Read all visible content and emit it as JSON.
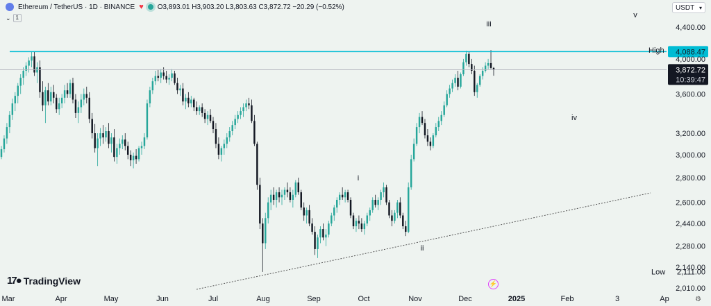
{
  "header": {
    "symbol": "Ethereum / TetherUS · 1D · BINANCE",
    "open": "O3,893.01",
    "high": "H3,903.20",
    "low": "L3,803.63",
    "close": "C3,872.72",
    "change": "−20.29 (−0.52%)",
    "indicator_count": "1"
  },
  "currency": {
    "label": "USDT"
  },
  "watermark": "TradingView",
  "chart_data": {
    "type": "candlestick",
    "title": "Ethereum / TetherUS · 1D · BINANCE",
    "x_tick_labels": [
      "Mar",
      "Apr",
      "May",
      "Jun",
      "Jul",
      "Aug",
      "Sep",
      "Oct",
      "Nov",
      "Dec",
      "2025",
      "Feb",
      "3",
      "Ap"
    ],
    "y_tick_labels": [
      "4,400.00",
      "4,000.00",
      "3,600.00",
      "3,200.00",
      "3,000.00",
      "2,800.00",
      "2,600.00",
      "2,440.00",
      "2,280.00",
      "2,140.00",
      "2,010.00"
    ],
    "scale": "log",
    "ylim": [
      1990,
      4560
    ],
    "candles": [
      [
        2980,
        3080,
        2960,
        3050
      ],
      [
        3050,
        3180,
        3020,
        3150
      ],
      [
        3150,
        3300,
        3100,
        3260
      ],
      [
        3260,
        3420,
        3200,
        3380
      ],
      [
        3380,
        3550,
        3330,
        3500
      ],
      [
        3500,
        3620,
        3420,
        3580
      ],
      [
        3580,
        3720,
        3500,
        3690
      ],
      [
        3690,
        3820,
        3600,
        3780
      ],
      [
        3780,
        3900,
        3700,
        3860
      ],
      [
        3860,
        3960,
        3800,
        3920
      ],
      [
        3920,
        4020,
        3840,
        3980
      ],
      [
        3980,
        4090,
        3900,
        4030
      ],
      [
        4030,
        4090,
        3800,
        3840
      ],
      [
        3840,
        3960,
        3720,
        3900
      ],
      [
        3900,
        3980,
        3560,
        3620
      ],
      [
        3620,
        3740,
        3420,
        3480
      ],
      [
        3480,
        3680,
        3300,
        3640
      ],
      [
        3640,
        3720,
        3480,
        3520
      ],
      [
        3520,
        3680,
        3480,
        3620
      ],
      [
        3620,
        3700,
        3500,
        3560
      ],
      [
        3560,
        3600,
        3400,
        3440
      ],
      [
        3440,
        3560,
        3380,
        3500
      ],
      [
        3500,
        3600,
        3450,
        3560
      ],
      [
        3560,
        3700,
        3500,
        3640
      ],
      [
        3640,
        3720,
        3560,
        3600
      ],
      [
        3600,
        3760,
        3560,
        3720
      ],
      [
        3720,
        3780,
        3500,
        3540
      ],
      [
        3540,
        3600,
        3350,
        3400
      ],
      [
        3400,
        3520,
        3300,
        3460
      ],
      [
        3460,
        3600,
        3400,
        3540
      ],
      [
        3540,
        3660,
        3480,
        3600
      ],
      [
        3600,
        3680,
        3500,
        3560
      ],
      [
        3560,
        3620,
        3300,
        3340
      ],
      [
        3340,
        3400,
        3150,
        3200
      ],
      [
        3200,
        3290,
        3020,
        3060
      ],
      [
        3060,
        3200,
        2900,
        3150
      ],
      [
        3150,
        3250,
        3080,
        3200
      ],
      [
        3200,
        3280,
        3100,
        3160
      ],
      [
        3160,
        3260,
        3120,
        3220
      ],
      [
        3220,
        3300,
        3060,
        3100
      ],
      [
        3100,
        3200,
        3020,
        3160
      ],
      [
        3160,
        3240,
        2940,
        2980
      ],
      [
        2980,
        3100,
        2920,
        3060
      ],
      [
        3060,
        3150,
        3000,
        3100
      ],
      [
        3100,
        3180,
        3050,
        3140
      ],
      [
        3140,
        3200,
        3040,
        3080
      ],
      [
        3080,
        3120,
        2960,
        3000
      ],
      [
        3000,
        3040,
        2900,
        2950
      ],
      [
        2950,
        3020,
        2880,
        2990
      ],
      [
        2990,
        3050,
        2920,
        2960
      ],
      [
        2960,
        3080,
        2940,
        3060
      ],
      [
        3060,
        3120,
        3000,
        3080
      ],
      [
        3080,
        3200,
        3050,
        3160
      ],
      [
        3160,
        3540,
        3140,
        3500
      ],
      [
        3500,
        3680,
        3460,
        3640
      ],
      [
        3640,
        3780,
        3600,
        3740
      ],
      [
        3740,
        3860,
        3700,
        3800
      ],
      [
        3800,
        3870,
        3740,
        3780
      ],
      [
        3780,
        3880,
        3720,
        3840
      ],
      [
        3840,
        3900,
        3760,
        3800
      ],
      [
        3800,
        3860,
        3720,
        3760
      ],
      [
        3760,
        3820,
        3700,
        3780
      ],
      [
        3780,
        3880,
        3740,
        3830
      ],
      [
        3830,
        3860,
        3700,
        3720
      ],
      [
        3720,
        3780,
        3600,
        3640
      ],
      [
        3640,
        3700,
        3580,
        3660
      ],
      [
        3660,
        3720,
        3480,
        3520
      ],
      [
        3520,
        3600,
        3440,
        3560
      ],
      [
        3560,
        3620,
        3460,
        3500
      ],
      [
        3500,
        3580,
        3460,
        3540
      ],
      [
        3540,
        3560,
        3420,
        3460
      ],
      [
        3460,
        3520,
        3380,
        3420
      ],
      [
        3420,
        3480,
        3380,
        3460
      ],
      [
        3460,
        3500,
        3360,
        3400
      ],
      [
        3400,
        3440,
        3300,
        3340
      ],
      [
        3340,
        3420,
        3280,
        3380
      ],
      [
        3380,
        3440,
        3300,
        3320
      ],
      [
        3320,
        3360,
        3200,
        3240
      ],
      [
        3240,
        3300,
        3060,
        3100
      ],
      [
        3100,
        3160,
        2960,
        3000
      ],
      [
        3000,
        3080,
        2940,
        3060
      ],
      [
        3060,
        3140,
        3000,
        3100
      ],
      [
        3100,
        3200,
        3060,
        3160
      ],
      [
        3160,
        3260,
        3120,
        3220
      ],
      [
        3220,
        3320,
        3180,
        3280
      ],
      [
        3280,
        3380,
        3240,
        3340
      ],
      [
        3340,
        3420,
        3300,
        3380
      ],
      [
        3380,
        3460,
        3340,
        3420
      ],
      [
        3420,
        3500,
        3360,
        3460
      ],
      [
        3460,
        3540,
        3420,
        3500
      ],
      [
        3500,
        3560,
        3440,
        3480
      ],
      [
        3480,
        3540,
        3300,
        3320
      ],
      [
        3320,
        3380,
        3080,
        3100
      ],
      [
        3100,
        3120,
        2700,
        2740
      ],
      [
        2740,
        2800,
        2400,
        2440
      ],
      [
        2440,
        2480,
        2110,
        2300
      ],
      [
        2300,
        2520,
        2260,
        2480
      ],
      [
        2480,
        2640,
        2440,
        2600
      ],
      [
        2600,
        2700,
        2540,
        2660
      ],
      [
        2660,
        2720,
        2580,
        2620
      ],
      [
        2620,
        2700,
        2560,
        2680
      ],
      [
        2680,
        2720,
        2600,
        2640
      ],
      [
        2640,
        2700,
        2580,
        2660
      ],
      [
        2660,
        2720,
        2620,
        2700
      ],
      [
        2700,
        2760,
        2640,
        2680
      ],
      [
        2680,
        2720,
        2600,
        2620
      ],
      [
        2620,
        2700,
        2560,
        2660
      ],
      [
        2660,
        2780,
        2640,
        2760
      ],
      [
        2760,
        2800,
        2660,
        2680
      ],
      [
        2680,
        2700,
        2540,
        2560
      ],
      [
        2560,
        2600,
        2460,
        2500
      ],
      [
        2500,
        2560,
        2440,
        2540
      ],
      [
        2540,
        2580,
        2420,
        2440
      ],
      [
        2440,
        2480,
        2360,
        2380
      ],
      [
        2380,
        2420,
        2220,
        2260
      ],
      [
        2260,
        2360,
        2200,
        2340
      ],
      [
        2340,
        2420,
        2300,
        2400
      ],
      [
        2400,
        2440,
        2320,
        2340
      ],
      [
        2340,
        2400,
        2280,
        2360
      ],
      [
        2360,
        2460,
        2340,
        2440
      ],
      [
        2440,
        2520,
        2420,
        2500
      ],
      [
        2500,
        2580,
        2460,
        2560
      ],
      [
        2560,
        2640,
        2520,
        2620
      ],
      [
        2620,
        2680,
        2580,
        2660
      ],
      [
        2660,
        2720,
        2620,
        2640
      ],
      [
        2640,
        2700,
        2600,
        2680
      ],
      [
        2680,
        2700,
        2600,
        2620
      ],
      [
        2620,
        2640,
        2480,
        2500
      ],
      [
        2500,
        2520,
        2400,
        2420
      ],
      [
        2420,
        2480,
        2380,
        2460
      ],
      [
        2460,
        2500,
        2400,
        2440
      ],
      [
        2440,
        2480,
        2380,
        2400
      ],
      [
        2400,
        2460,
        2360,
        2440
      ],
      [
        2440,
        2520,
        2420,
        2500
      ],
      [
        2500,
        2560,
        2460,
        2540
      ],
      [
        2540,
        2640,
        2520,
        2620
      ],
      [
        2620,
        2660,
        2560,
        2580
      ],
      [
        2580,
        2640,
        2540,
        2620
      ],
      [
        2620,
        2700,
        2580,
        2680
      ],
      [
        2680,
        2760,
        2640,
        2720
      ],
      [
        2720,
        2740,
        2580,
        2600
      ],
      [
        2600,
        2620,
        2480,
        2500
      ],
      [
        2500,
        2540,
        2420,
        2460
      ],
      [
        2460,
        2540,
        2440,
        2520
      ],
      [
        2520,
        2620,
        2480,
        2600
      ],
      [
        2600,
        2640,
        2480,
        2500
      ],
      [
        2500,
        2520,
        2400,
        2420
      ],
      [
        2420,
        2460,
        2350,
        2380
      ],
      [
        2380,
        2760,
        2370,
        2720
      ],
      [
        2720,
        3000,
        2700,
        2960
      ],
      [
        2960,
        3150,
        2940,
        3100
      ],
      [
        3100,
        3300,
        3080,
        3260
      ],
      [
        3260,
        3400,
        3200,
        3360
      ],
      [
        3360,
        3420,
        3280,
        3300
      ],
      [
        3300,
        3340,
        3150,
        3180
      ],
      [
        3180,
        3240,
        3080,
        3120
      ],
      [
        3120,
        3160,
        3040,
        3080
      ],
      [
        3080,
        3200,
        3060,
        3180
      ],
      [
        3180,
        3300,
        3160,
        3260
      ],
      [
        3260,
        3360,
        3220,
        3320
      ],
      [
        3320,
        3420,
        3280,
        3380
      ],
      [
        3380,
        3520,
        3360,
        3480
      ],
      [
        3480,
        3640,
        3460,
        3600
      ],
      [
        3600,
        3700,
        3560,
        3660
      ],
      [
        3660,
        3760,
        3620,
        3720
      ],
      [
        3720,
        3820,
        3680,
        3780
      ],
      [
        3780,
        3860,
        3640,
        3680
      ],
      [
        3680,
        3840,
        3660,
        3820
      ],
      [
        3820,
        4000,
        3800,
        3960
      ],
      [
        3960,
        4100,
        3920,
        4060
      ],
      [
        4060,
        4090,
        3900,
        3940
      ],
      [
        3940,
        4000,
        3820,
        3860
      ],
      [
        3860,
        3920,
        3580,
        3620
      ],
      [
        3620,
        3720,
        3560,
        3700
      ],
      [
        3700,
        3820,
        3680,
        3800
      ],
      [
        3800,
        3900,
        3760,
        3860
      ],
      [
        3860,
        3960,
        3840,
        3920
      ],
      [
        3920,
        4000,
        3880,
        3950
      ],
      [
        3950,
        4108,
        3880,
        3893
      ],
      [
        3893,
        3903,
        3803,
        3873
      ]
    ],
    "resistance_level": 4088.47,
    "current_price": 3872.72,
    "price_labels": {
      "high": "High",
      "high_value": "4,107.80",
      "resistance": "4,088.47",
      "current": "3,872.72",
      "countdown": "10:39:47",
      "low": "Low",
      "low_value": "2,111.00"
    },
    "wave_labels": [
      "i",
      "ii",
      "iii",
      "iv",
      "v"
    ],
    "trendline": {
      "style": "dashed",
      "from_month": "Aug",
      "to_month": "Ap"
    }
  }
}
